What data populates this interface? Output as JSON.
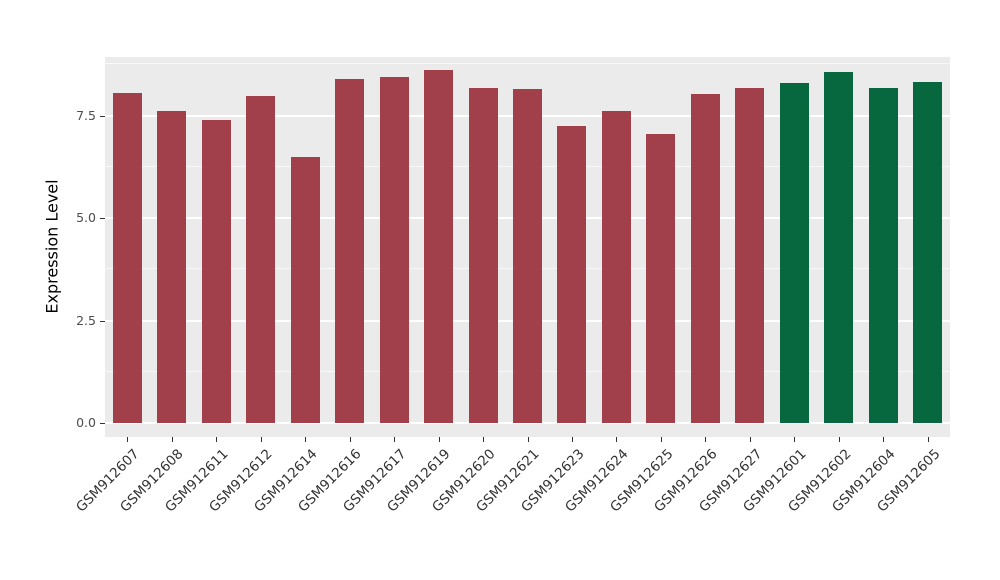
{
  "chart_data": {
    "type": "bar",
    "title": "",
    "xlabel": "",
    "ylabel": "Expression Level",
    "ylim": [
      0,
      8.9
    ],
    "yticks": [
      0.0,
      2.5,
      5.0,
      7.5
    ],
    "minor_yticks": [
      1.25,
      3.75,
      6.25,
      8.75
    ],
    "grid": "on",
    "legend": "none",
    "panel_background": "#EBEBEB",
    "grid_color": "#FFFFFF",
    "group_colors": {
      "red_group": "#A1404A",
      "green_group": "#07683F"
    },
    "categories": [
      "GSM912607",
      "GSM912608",
      "GSM912611",
      "GSM912612",
      "GSM912614",
      "GSM912616",
      "GSM912617",
      "GSM912619",
      "GSM912620",
      "GSM912621",
      "GSM912623",
      "GSM912624",
      "GSM912625",
      "GSM912626",
      "GSM912627",
      "GSM912601",
      "GSM912602",
      "GSM912604",
      "GSM912605"
    ],
    "values": [
      8.05,
      7.62,
      7.38,
      7.98,
      6.5,
      8.38,
      8.45,
      8.6,
      8.18,
      8.15,
      7.25,
      7.62,
      7.05,
      8.02,
      8.18,
      8.3,
      8.55,
      8.18,
      8.32
    ],
    "bar_colors": [
      "#A1404A",
      "#A1404A",
      "#A1404A",
      "#A1404A",
      "#A1404A",
      "#A1404A",
      "#A1404A",
      "#A1404A",
      "#A1404A",
      "#A1404A",
      "#A1404A",
      "#A1404A",
      "#A1404A",
      "#A1404A",
      "#A1404A",
      "#07683F",
      "#07683F",
      "#07683F",
      "#07683F"
    ]
  }
}
